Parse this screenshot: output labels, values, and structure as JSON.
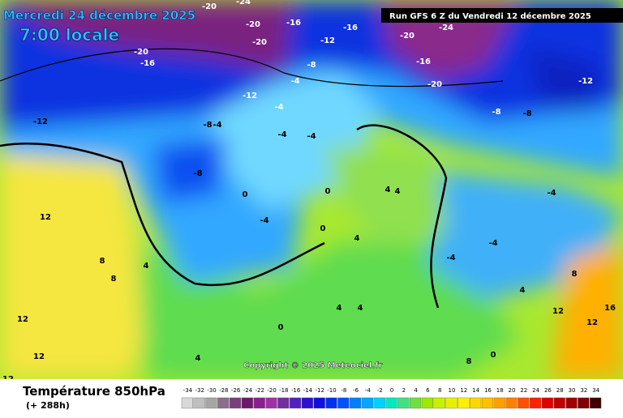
{
  "header": {
    "date": "Mercredi 24 décembre 2025",
    "time": "7:00 locale",
    "run": "Run GFS 6 Z du Vendredi 12 décembre 2025"
  },
  "map": {
    "labels": [
      "-24",
      "-20",
      "-16",
      "-20",
      "-20",
      "-12",
      "-16",
      "-20",
      "-24",
      "-16",
      "-20",
      "-16",
      "-20",
      "-8",
      "-12",
      "-8",
      "-12",
      "-12",
      "-8",
      "-4",
      "-4",
      "-8",
      "-4",
      "-4",
      "-8",
      "-4",
      "0",
      "-4",
      "0",
      "0",
      "4",
      "4",
      "4",
      "8",
      "12",
      "12",
      "12",
      "8",
      "4",
      "0",
      "4",
      "4",
      "8",
      "12",
      "16",
      "12",
      "-4",
      "-4",
      "4",
      "8",
      "12",
      "0",
      "4",
      "-4"
    ],
    "copyright": "Copyright © 2025 Meteociel.fr"
  },
  "footer": {
    "title": "Température 850hPa",
    "lead": "(+ 288h)"
  },
  "legend": {
    "values": [
      -34,
      -32,
      -30,
      -28,
      -26,
      -24,
      -22,
      -20,
      -18,
      -16,
      -14,
      -12,
      -10,
      -8,
      -6,
      -4,
      -2,
      0,
      2,
      4,
      6,
      8,
      10,
      12,
      14,
      16,
      18,
      20,
      22,
      24,
      26,
      28,
      30,
      32,
      34
    ],
    "colors": [
      "#d9d9d9",
      "#bfbfbf",
      "#a6a6a6",
      "#8c6d8c",
      "#7a3f7a",
      "#6b1a6b",
      "#8a2090",
      "#a030a8",
      "#7030a0",
      "#5020c0",
      "#3010d0",
      "#1010e0",
      "#0030f0",
      "#0050ff",
      "#0080ff",
      "#00a8ff",
      "#00d0ff",
      "#00e8c0",
      "#40e080",
      "#70e040",
      "#a0e800",
      "#c8f000",
      "#e8f000",
      "#fff000",
      "#ffd800",
      "#ffc000",
      "#ffa000",
      "#ff8000",
      "#ff5000",
      "#ff2000",
      "#e00000",
      "#c00000",
      "#a00000",
      "#800000",
      "#400000"
    ]
  }
}
